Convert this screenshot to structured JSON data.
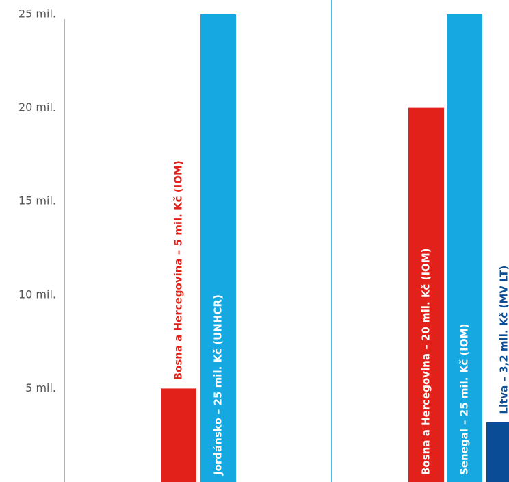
{
  "chart_data": {
    "type": "bar",
    "ylim": [
      0,
      25
    ],
    "yticks": [
      {
        "value": 5,
        "label": "5 mil."
      },
      {
        "value": 10,
        "label": "10 mil."
      },
      {
        "value": 15,
        "label": "15 mil."
      },
      {
        "value": 20,
        "label": "20 mil."
      },
      {
        "value": 25,
        "label": "25 mil."
      }
    ],
    "unit": "mil. Kč",
    "grid": false,
    "bars": [
      {
        "group": 1,
        "value": 5,
        "label": "Bosna a Hercegovina – 5 mil. Kč (IOM)",
        "color": "#e3211b",
        "label_color": "#e3211b",
        "label_position": "above"
      },
      {
        "group": 1,
        "value": 25,
        "label": "Jordánsko – 25 mil. Kč (UNHCR)",
        "color": "#16a8e0",
        "label_color": "#ffffff",
        "label_position": "inside"
      },
      {
        "group": 2,
        "value": 20,
        "label": "Bosna a Hercegovina – 20 mil. Kč (IOM)",
        "color": "#e3211b",
        "label_color": "#ffffff",
        "label_position": "inside"
      },
      {
        "group": 2,
        "value": 25,
        "label": "Senegal – 25 mil. Kč (IOM)",
        "color": "#16a8e0",
        "label_color": "#ffffff",
        "label_position": "inside"
      },
      {
        "group": 2,
        "value": 3.2,
        "label": "Litva – 3,2 mil. Kč (MV LT)",
        "color": "#0a4d96",
        "label_color": "#0a4d96",
        "label_position": "above"
      }
    ],
    "colors": {
      "axis": "#999999",
      "group_divider": "#16a8e0"
    }
  }
}
